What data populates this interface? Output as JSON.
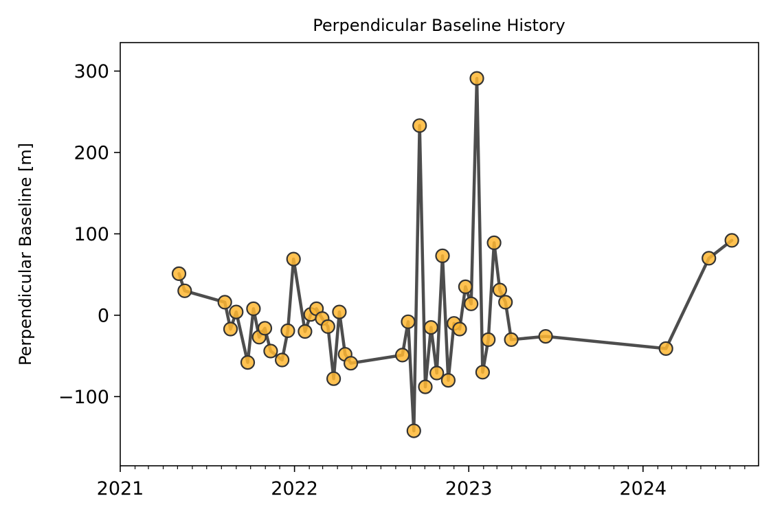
{
  "chart_data": {
    "type": "line",
    "title": "Perpendicular Baseline History",
    "xlabel": "",
    "ylabel": "Perpendicular Baseline [m]",
    "xlim": [
      "2021-01-01",
      "2024-08-30"
    ],
    "ylim": [
      -185,
      335
    ],
    "x_ticks": [
      {
        "date": "2021-01-01",
        "label": "2021"
      },
      {
        "date": "2022-01-01",
        "label": "2022"
      },
      {
        "date": "2023-01-01",
        "label": "2023"
      },
      {
        "date": "2024-01-01",
        "label": "2024"
      }
    ],
    "y_ticks": [
      -100,
      0,
      100,
      200,
      300
    ],
    "y_tick_labels": [
      "−100",
      "0",
      "100",
      "200",
      "300"
    ],
    "grid": false,
    "line_color": "#4d4d4d",
    "marker_color": "#ffb733",
    "marker_edge_color": "#333333",
    "series": [
      {
        "points": [
          {
            "date": "2021-05-04",
            "value": 51
          },
          {
            "date": "2021-05-16",
            "value": 30
          },
          {
            "date": "2021-08-08",
            "value": 16
          },
          {
            "date": "2021-08-20",
            "value": -17
          },
          {
            "date": "2021-09-01",
            "value": 4
          },
          {
            "date": "2021-09-25",
            "value": -58
          },
          {
            "date": "2021-10-07",
            "value": 8
          },
          {
            "date": "2021-10-19",
            "value": -27
          },
          {
            "date": "2021-10-31",
            "value": -16
          },
          {
            "date": "2021-11-12",
            "value": -44
          },
          {
            "date": "2021-12-06",
            "value": -55
          },
          {
            "date": "2021-12-18",
            "value": -19
          },
          {
            "date": "2021-12-30",
            "value": 69
          },
          {
            "date": "2022-01-23",
            "value": -20
          },
          {
            "date": "2022-02-04",
            "value": 1
          },
          {
            "date": "2022-02-16",
            "value": 8
          },
          {
            "date": "2022-02-28",
            "value": -4
          },
          {
            "date": "2022-03-12",
            "value": -14
          },
          {
            "date": "2022-03-24",
            "value": -78
          },
          {
            "date": "2022-04-05",
            "value": 4
          },
          {
            "date": "2022-04-17",
            "value": -48
          },
          {
            "date": "2022-04-29",
            "value": -59
          },
          {
            "date": "2022-08-15",
            "value": -49
          },
          {
            "date": "2022-08-27",
            "value": -8
          },
          {
            "date": "2022-09-08",
            "value": -142
          },
          {
            "date": "2022-09-20",
            "value": 233
          },
          {
            "date": "2022-10-02",
            "value": -88
          },
          {
            "date": "2022-10-14",
            "value": -15
          },
          {
            "date": "2022-10-26",
            "value": -71
          },
          {
            "date": "2022-11-07",
            "value": 73
          },
          {
            "date": "2022-11-19",
            "value": -80
          },
          {
            "date": "2022-12-01",
            "value": -10
          },
          {
            "date": "2022-12-13",
            "value": -17
          },
          {
            "date": "2022-12-25",
            "value": 35
          },
          {
            "date": "2023-01-06",
            "value": 14
          },
          {
            "date": "2023-01-18",
            "value": 291
          },
          {
            "date": "2023-01-30",
            "value": -70
          },
          {
            "date": "2023-02-11",
            "value": -30
          },
          {
            "date": "2023-02-23",
            "value": 89
          },
          {
            "date": "2023-03-07",
            "value": 31
          },
          {
            "date": "2023-03-19",
            "value": 16
          },
          {
            "date": "2023-03-31",
            "value": -30
          },
          {
            "date": "2023-06-11",
            "value": -26
          },
          {
            "date": "2024-02-18",
            "value": -41
          },
          {
            "date": "2024-05-18",
            "value": 70
          },
          {
            "date": "2024-07-05",
            "value": 92
          }
        ]
      }
    ]
  }
}
